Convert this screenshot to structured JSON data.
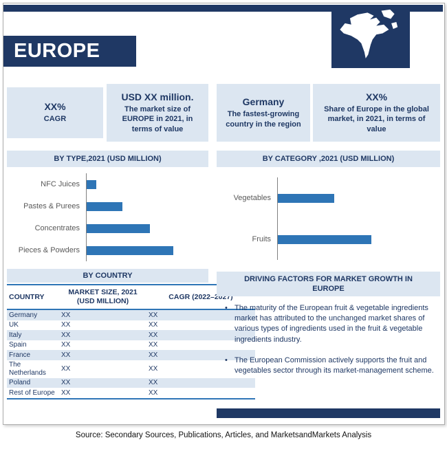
{
  "header": {
    "title": "EUROPE",
    "map_icon": "north-america-map"
  },
  "stats": [
    {
      "value": "XX%",
      "label": "CAGR"
    },
    {
      "value": "USD XX million.",
      "label": "The market size of EUROPE in 2021, in terms of value"
    },
    {
      "value": "Germany",
      "label": "The fastest-growing country in the region"
    },
    {
      "value": "XX%",
      "label": "Share of Europe in the global market, in 2021, in terms of value"
    }
  ],
  "chart_data": [
    {
      "type": "bar",
      "orientation": "horizontal",
      "title": "BY  TYPE,2021 (USD MILLION)",
      "categories": [
        "NFC Juices",
        "Pastes & Purees",
        "Concentrates",
        "Pieces & Powders"
      ],
      "values": [
        11,
        41,
        73,
        100
      ],
      "value_note": "axis values not labeled in source (XX placeholder slide); values are relative bar-length estimates with max = 100",
      "bar_color": "#2E75B6",
      "legend": false,
      "grid": false
    },
    {
      "type": "bar",
      "orientation": "horizontal",
      "title": "BY   CATEGORY ,2021 (USD MILLION)",
      "categories": [
        "Vegetables",
        "Fruits"
      ],
      "values": [
        60,
        100
      ],
      "value_note": "axis values not labeled in source (XX placeholder slide); values are relative bar-length estimates with max = 100",
      "bar_color": "#2E75B6",
      "legend": false,
      "grid": false
    }
  ],
  "country_table": {
    "title": "BY COUNTRY",
    "columns": [
      "COUNTRY",
      "MARKET SIZE, 2021 (USD MILLION)",
      "CAGR (2022–2027)"
    ],
    "rows": [
      [
        "Germany",
        "XX",
        "XX"
      ],
      [
        "UK",
        "XX",
        "XX"
      ],
      [
        "Italy",
        "XX",
        "XX"
      ],
      [
        "Spain",
        "XX",
        "XX"
      ],
      [
        "France",
        "XX",
        "XX"
      ],
      [
        "The Netherlands",
        "XX",
        "XX"
      ],
      [
        "Poland",
        "XX",
        "XX"
      ],
      [
        "Rest of Europe",
        "XX",
        "XX"
      ]
    ]
  },
  "driving_factors": {
    "title": "DRIVING FACTORS FOR MARKET GROWTH IN EUROPE",
    "bullets": [
      "The maturity of the European fruit & vegetable ingredients market  has attributed to the unchanged market shares of various types of ingredients used in the fruit & vegetable ingredients industry.",
      "The European Commission actively supports the fruit and vegetables sector through its market-management scheme."
    ]
  },
  "footer": {
    "source": "Source: Secondary Sources, Publications, Articles, and MarketsandMarkets Analysis"
  },
  "colors": {
    "navy": "#1F3864",
    "light_blue": "#DCE6F1",
    "bar_blue": "#2E75B6",
    "table_line_blue": "#2E75B6",
    "chart_label_gray": "#595959"
  }
}
